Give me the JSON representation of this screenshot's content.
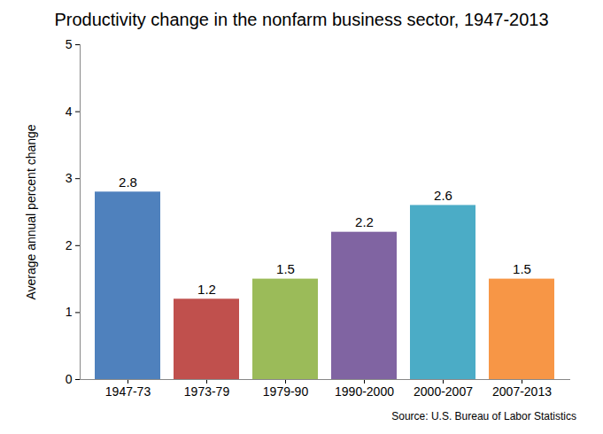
{
  "chart_data": {
    "type": "bar",
    "title": "Productivity change in the nonfarm business sector,  1947-2013",
    "y_label": "Average annual percent change",
    "categories": [
      "1947-73",
      "1973-79",
      "1979-90",
      "1990-2000",
      "2000-2007",
      "2007-2013"
    ],
    "values": [
      2.8,
      1.2,
      1.5,
      2.2,
      2.6,
      1.5
    ],
    "colors": [
      "#4f81bd",
      "#c0504d",
      "#9bbb59",
      "#8064a2",
      "#4bacc6",
      "#f79646"
    ],
    "ylim": [
      0,
      5
    ],
    "yticks": [
      0,
      1,
      2,
      3,
      4,
      5
    ],
    "grid": false,
    "data_labels": true,
    "source": "Source: U.S. Bureau of Labor Statistics"
  }
}
